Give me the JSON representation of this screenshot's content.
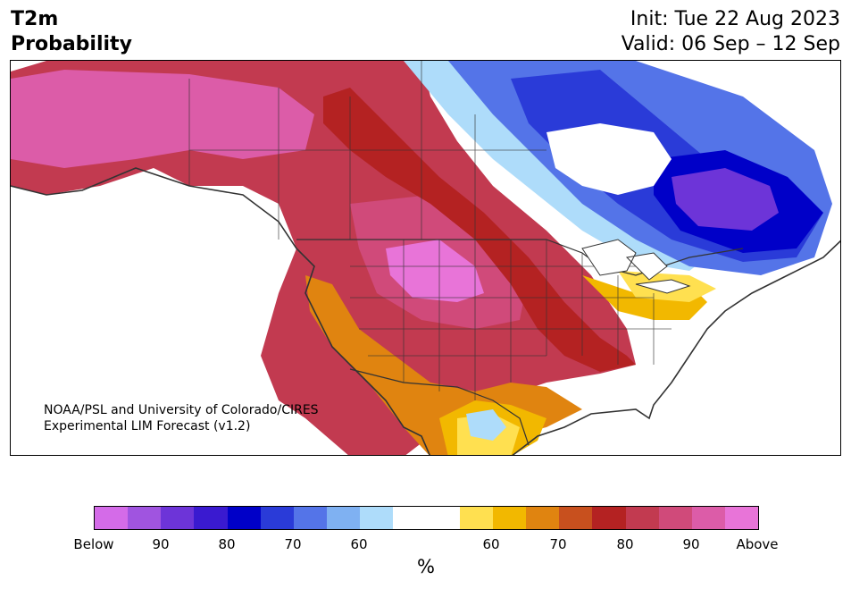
{
  "header": {
    "title_line1": "T2m",
    "title_line2": "Probability",
    "init": "Init: Tue 22 Aug 2023",
    "valid": "Valid: 06 Sep – 12 Sep"
  },
  "credit": {
    "line1": "NOAA/PSL and University of Colorado/CIRES",
    "line2": "Experimental LIM Forecast (v1.2)"
  },
  "legend": {
    "units": "%",
    "colors": [
      "#d46be8",
      "#a054e0",
      "#6d34d8",
      "#3a1ad0",
      "#0000c8",
      "#2a3bd8",
      "#5474e8",
      "#7fb1f2",
      "#aedcfa",
      "#ffffff",
      "#ffffff",
      "#ffe050",
      "#f2b800",
      "#e08410",
      "#c8501e",
      "#b42222",
      "#c23a50",
      "#d04a7a",
      "#dc5ca8",
      "#e874d8"
    ],
    "labels": [
      "Below",
      "90",
      "80",
      "70",
      "60",
      "60",
      "70",
      "80",
      "90",
      "Above"
    ]
  },
  "map_colors": {
    "pink": "#dc5ca8",
    "rose": "#d04a7a",
    "crimson": "#c23a50",
    "red": "#b42222",
    "burnt": "#c8501e",
    "orange": "#e08410",
    "gold": "#f2b800",
    "yellow": "#ffe050",
    "lightblue": "#aedcfa",
    "skyblue": "#7fb1f2",
    "blue": "#5474e8",
    "royal": "#2a3bd8",
    "navy": "#0000c8",
    "indigo": "#3a1ad0",
    "violet": "#6d34d8"
  }
}
